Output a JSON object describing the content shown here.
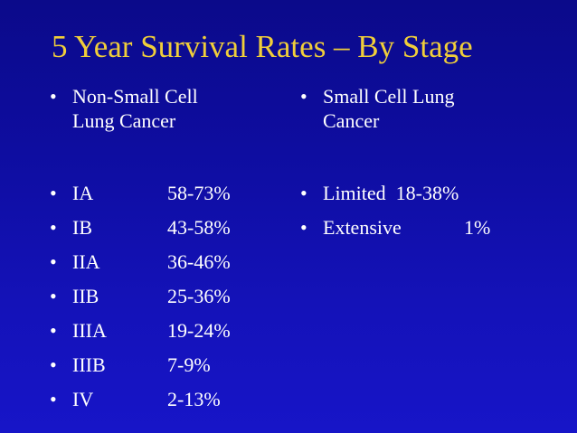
{
  "title": "5 Year Survival Rates – By Stage",
  "bullet_glyph": "•",
  "left": {
    "heading_line1": "Non-Small Cell",
    "heading_line2": "Lung Cancer",
    "rows": [
      {
        "stage": "IA",
        "rate": "58-73%"
      },
      {
        "stage": "IB",
        "rate": "43-58%"
      },
      {
        "stage": "IIA",
        "rate": "36-46%"
      },
      {
        "stage": "IIB",
        "rate": "25-36%"
      },
      {
        "stage": "IIIA",
        "rate": "19-24%"
      },
      {
        "stage": "IIIB",
        "rate": "7-9%"
      },
      {
        "stage": "IV",
        "rate": "2-13%"
      }
    ]
  },
  "right": {
    "heading_line1": "Small Cell Lung",
    "heading_line2": "Cancer",
    "rows": [
      {
        "stage": "Limited",
        "rate": "18-38%"
      },
      {
        "stage": "Extensive",
        "rate": "1%"
      }
    ]
  },
  "colors": {
    "title": "#f0ce3a",
    "text": "#ffffff",
    "background_top": "#0b0a8a",
    "background_bottom": "#1715c8"
  }
}
